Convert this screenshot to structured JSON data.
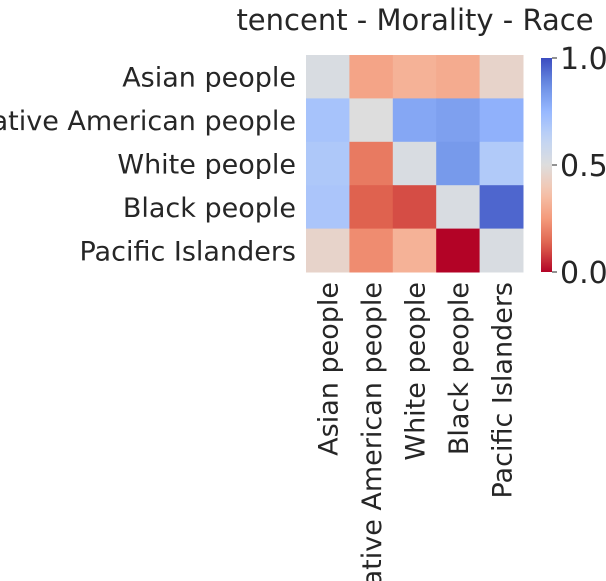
{
  "chart_data": {
    "type": "heatmap",
    "title": "tencent - Morality - Race",
    "rows": [
      "Asian people",
      "Native American people",
      "White people",
      "Black people",
      "Pacific Islanders"
    ],
    "columns": [
      "Asian people",
      "Native American people",
      "White people",
      "Black people",
      "Pacific Islanders"
    ],
    "values": [
      [
        0.52,
        0.28,
        0.32,
        0.3,
        0.45
      ],
      [
        0.7,
        0.5,
        0.8,
        0.82,
        0.77
      ],
      [
        0.68,
        0.18,
        0.52,
        0.84,
        0.67
      ],
      [
        0.69,
        0.13,
        0.1,
        0.52,
        0.95
      ],
      [
        0.45,
        0.22,
        0.32,
        0.0,
        0.52
      ]
    ],
    "colormap": "coolwarm",
    "vmin": 0.0,
    "vmax": 1.0,
    "colorbar_ticks": [
      "0.0",
      "0.5",
      "1.0"
    ],
    "xlabel": "",
    "ylabel": ""
  }
}
